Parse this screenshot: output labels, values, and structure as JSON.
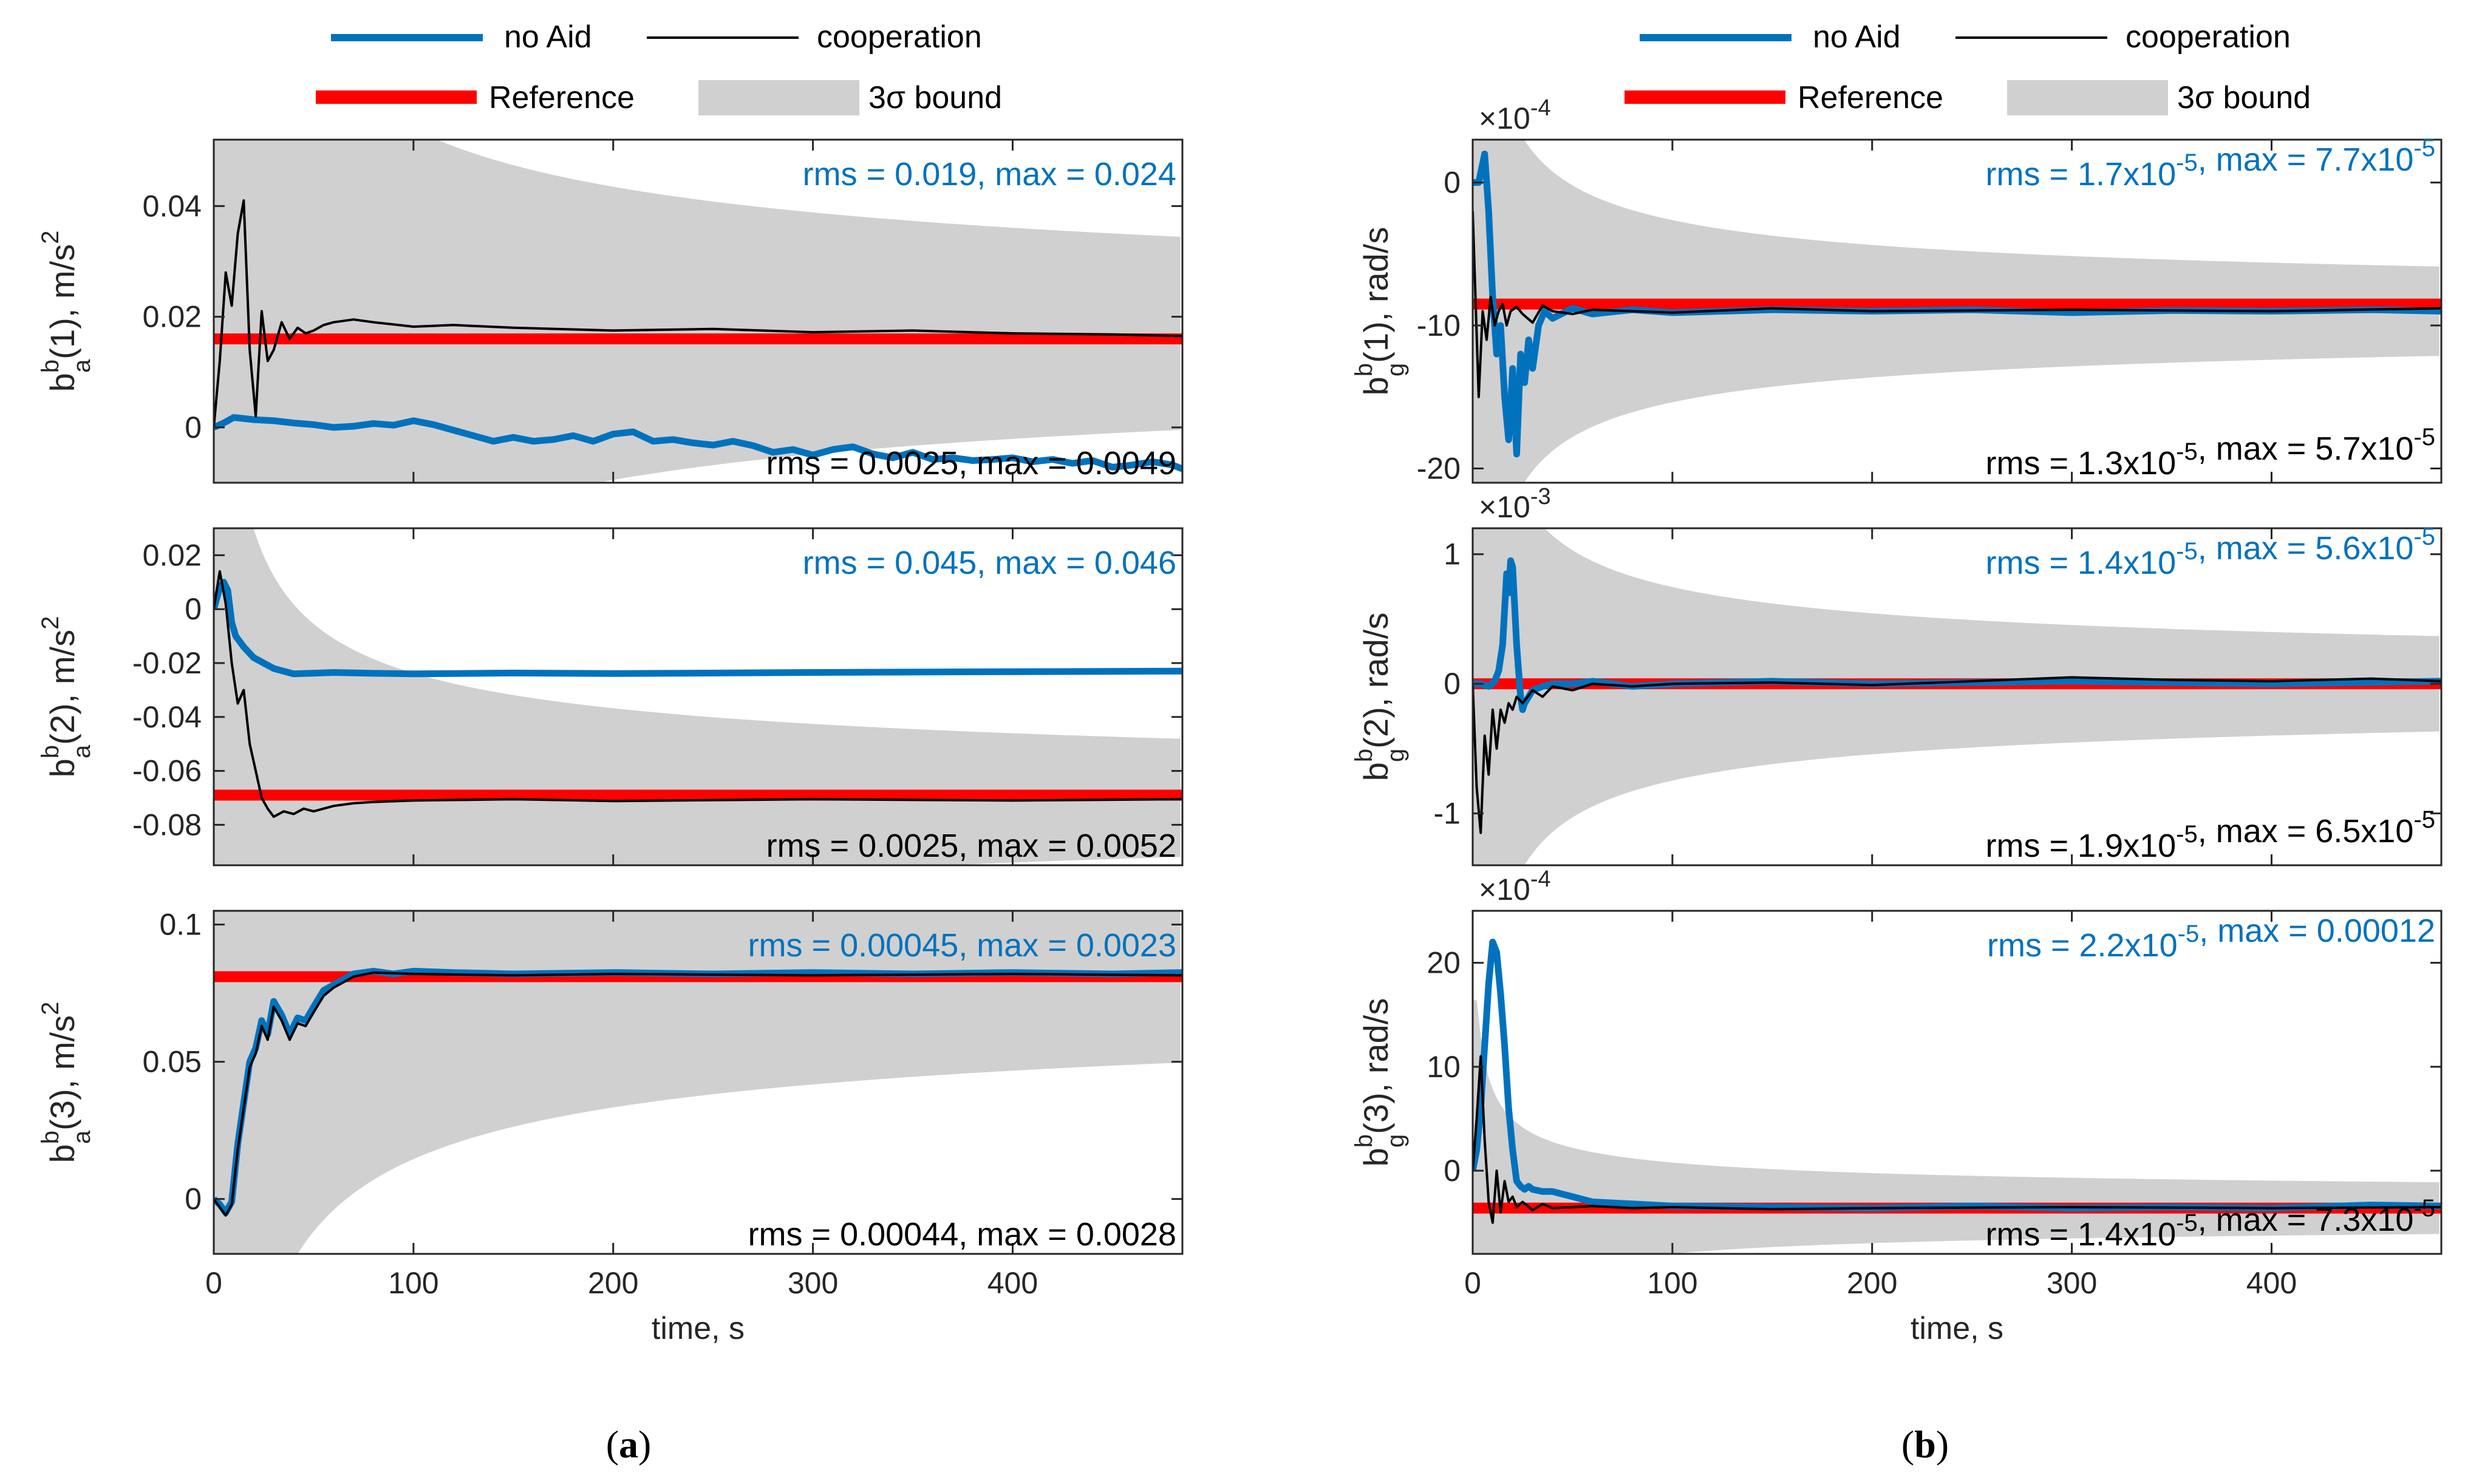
{
  "colors": {
    "no_aid": "#0072BD",
    "cooperation": "#000000",
    "reference": "#FF0000",
    "bound": "#D0D0D0",
    "axis": "#262626"
  },
  "chart_data": [
    {
      "panel": "a",
      "type": "line",
      "ylabel": "b_a^b(1), m/s^2",
      "ylim": [
        -0.01,
        0.052
      ],
      "yticks": [
        0,
        0.02,
        0.04
      ],
      "yticklabels": [
        "0",
        "0.02",
        "0.04"
      ],
      "xlim": [
        0,
        485
      ],
      "xticks": [
        0,
        100,
        200,
        300,
        400
      ],
      "xticklabels": [],
      "xlabel": "",
      "exponent": null,
      "annot_top": {
        "rms": "0.019",
        "max": "0.024"
      },
      "annot_bottom": {
        "rms": "0.0025",
        "max": "0.0049"
      },
      "reference": 0.016,
      "bound": {
        "center": 0.017,
        "k": 0.36,
        "floor": 0.0011,
        "cap": 0.05
      },
      "series": [
        {
          "name": "no Aid",
          "x": [
            0,
            5,
            10,
            20,
            30,
            40,
            50,
            60,
            70,
            80,
            90,
            100,
            110,
            120,
            130,
            140,
            150,
            160,
            170,
            180,
            190,
            200,
            210,
            220,
            230,
            240,
            250,
            260,
            270,
            280,
            290,
            300,
            310,
            320,
            330,
            340,
            350,
            360,
            370,
            380,
            390,
            400,
            410,
            420,
            430,
            440,
            450,
            460,
            470,
            480,
            485
          ],
          "y": [
            0,
            0.0008,
            0.0018,
            0.0014,
            0.0012,
            0.0008,
            0.0005,
            0,
            0.0002,
            0.0007,
            0.0004,
            0.0012,
            0.0005,
            -0.0005,
            -0.0015,
            -0.0025,
            -0.0018,
            -0.0025,
            -0.0022,
            -0.0015,
            -0.0025,
            -0.0012,
            -0.0008,
            -0.0025,
            -0.0022,
            -0.0028,
            -0.0032,
            -0.0025,
            -0.0033,
            -0.0045,
            -0.004,
            -0.005,
            -0.004,
            -0.0035,
            -0.0048,
            -0.0055,
            -0.0045,
            -0.0058,
            -0.0055,
            -0.006,
            -0.0058,
            -0.0055,
            -0.0062,
            -0.0058,
            -0.0065,
            -0.006,
            -0.0072,
            -0.0068,
            -0.0062,
            -0.0068,
            -0.0075
          ]
        },
        {
          "name": "cooperation",
          "x": [
            0,
            3,
            6,
            9,
            12,
            15,
            18,
            21,
            24,
            27,
            30,
            34,
            38,
            42,
            46,
            50,
            55,
            60,
            70,
            80,
            100,
            120,
            150,
            200,
            250,
            300,
            350,
            400,
            450,
            485
          ],
          "y": [
            0,
            0.012,
            0.028,
            0.022,
            0.035,
            0.041,
            0.014,
            0.002,
            0.021,
            0.012,
            0.014,
            0.019,
            0.016,
            0.018,
            0.017,
            0.0175,
            0.0185,
            0.019,
            0.0195,
            0.019,
            0.0182,
            0.0185,
            0.018,
            0.0175,
            0.0178,
            0.0172,
            0.0175,
            0.017,
            0.0168,
            0.0165
          ]
        }
      ]
    },
    {
      "panel": "a",
      "type": "line",
      "ylabel": "b_a^b(2), m/s^2",
      "ylim": [
        -0.095,
        0.03
      ],
      "yticks": [
        -0.08,
        -0.06,
        -0.04,
        -0.02,
        0,
        0.02
      ],
      "yticklabels": [
        "-0.08",
        "-0.06",
        "-0.04",
        "-0.02",
        "0",
        "0.02"
      ],
      "xlim": [
        0,
        485
      ],
      "xticks": [
        0,
        100,
        200,
        300,
        400
      ],
      "xticklabels": [],
      "xlabel": "",
      "exponent": null,
      "annot_top": {
        "rms": "0.045",
        "max": "0.046"
      },
      "annot_bottom": {
        "rms": "0.0025",
        "max": "0.0052"
      },
      "reference": -0.069,
      "bound": {
        "center": -0.07,
        "k": 0.45,
        "floor": 0.0015,
        "cap": 0.13
      },
      "series": [
        {
          "name": "no Aid",
          "x": [
            0,
            3,
            5,
            7,
            9,
            11,
            13,
            15,
            20,
            25,
            30,
            40,
            60,
            80,
            100,
            150,
            200,
            300,
            400,
            485
          ],
          "y": [
            0,
            0.008,
            0.01,
            0.007,
            -0.005,
            -0.01,
            -0.012,
            -0.014,
            -0.018,
            -0.02,
            -0.022,
            -0.024,
            -0.0235,
            -0.0238,
            -0.024,
            -0.0237,
            -0.0239,
            -0.0235,
            -0.0232,
            -0.023
          ]
        },
        {
          "name": "cooperation",
          "x": [
            0,
            3,
            6,
            9,
            12,
            15,
            18,
            21,
            24,
            27,
            30,
            35,
            40,
            45,
            50,
            60,
            70,
            80,
            100,
            150,
            200,
            300,
            400,
            485
          ],
          "y": [
            0,
            0.014,
            0.002,
            -0.02,
            -0.035,
            -0.03,
            -0.05,
            -0.06,
            -0.07,
            -0.074,
            -0.077,
            -0.075,
            -0.076,
            -0.074,
            -0.075,
            -0.073,
            -0.072,
            -0.0715,
            -0.071,
            -0.0705,
            -0.0712,
            -0.0705,
            -0.071,
            -0.0705
          ]
        }
      ]
    },
    {
      "panel": "a",
      "type": "line",
      "ylabel": "b_a^b(3), m/s^2",
      "ylim": [
        -0.02,
        0.105
      ],
      "yticks": [
        0,
        0.05,
        0.1
      ],
      "yticklabels": [
        "0",
        "0.05",
        "0.1"
      ],
      "xlim": [
        0,
        485
      ],
      "xticks": [
        0,
        100,
        200,
        300,
        400
      ],
      "xticklabels": [
        "0",
        "100",
        "200",
        "300",
        "400"
      ],
      "xlabel": "time, s",
      "exponent": null,
      "annot_top": {
        "rms": "0.00045",
        "max": "0.0023"
      },
      "annot_bottom": {
        "rms": "0.00044",
        "max": "0.0028"
      },
      "reference": 0.081,
      "bound": {
        "center": 0.081,
        "k": 0.65,
        "floor": 0.0018,
        "cap": 0.2
      },
      "series": [
        {
          "name": "no Aid",
          "x": [
            0,
            3,
            6,
            9,
            12,
            15,
            18,
            21,
            24,
            27,
            30,
            34,
            38,
            42,
            46,
            50,
            55,
            60,
            65,
            70,
            80,
            90,
            100,
            120,
            150,
            200,
            250,
            300,
            350,
            400,
            450,
            485
          ],
          "y": [
            0,
            -0.002,
            -0.005,
            -0.001,
            0.02,
            0.035,
            0.05,
            0.055,
            0.065,
            0.06,
            0.072,
            0.067,
            0.06,
            0.066,
            0.065,
            0.07,
            0.076,
            0.078,
            0.08,
            0.082,
            0.083,
            0.082,
            0.083,
            0.0825,
            0.082,
            0.0825,
            0.082,
            0.0825,
            0.082,
            0.0825,
            0.082,
            0.0825
          ]
        },
        {
          "name": "cooperation",
          "x": [
            0,
            3,
            6,
            9,
            12,
            15,
            18,
            21,
            24,
            27,
            30,
            34,
            38,
            42,
            46,
            50,
            55,
            60,
            70,
            80,
            100,
            150,
            200,
            300,
            400,
            485
          ],
          "y": [
            0,
            -0.003,
            -0.006,
            -0.002,
            0.018,
            0.033,
            0.048,
            0.053,
            0.063,
            0.058,
            0.07,
            0.065,
            0.058,
            0.064,
            0.063,
            0.068,
            0.074,
            0.077,
            0.081,
            0.0825,
            0.082,
            0.0815,
            0.082,
            0.0815,
            0.082,
            0.0815
          ]
        }
      ]
    },
    {
      "panel": "b",
      "type": "line",
      "ylabel": "b_g^b(1), rad/s",
      "ylim": [
        -21,
        3
      ],
      "yticks": [
        -20,
        -10,
        0
      ],
      "yticklabels": [
        "-20",
        "-10",
        "0"
      ],
      "xlim": [
        0,
        485
      ],
      "xticks": [
        0,
        100,
        200,
        300,
        400
      ],
      "xticklabels": [],
      "xlabel": "",
      "exponent": "×10",
      "exponent_power": "-4",
      "annot_top": {
        "rms": "1.7x10",
        "rms_exp": "-5",
        "max": "7.7x10",
        "max_exp": "-5"
      },
      "annot_bottom": {
        "rms": "1.3x10",
        "rms_exp": "-5",
        "max": "5.7x10",
        "max_exp": "-5"
      },
      "reference": -8.5,
      "bound": {
        "center": -9,
        "k": 60,
        "floor": 0.4,
        "cap": 15
      },
      "series": [
        {
          "name": "no Aid",
          "x": [
            0,
            3,
            6,
            8,
            10,
            12,
            14,
            16,
            18,
            20,
            22,
            24,
            26,
            28,
            30,
            33,
            36,
            40,
            50,
            60,
            80,
            100,
            150,
            200,
            250,
            300,
            350,
            400,
            450,
            485
          ],
          "y": [
            0,
            0,
            2,
            -2,
            -8,
            -12,
            -10,
            -15,
            -18,
            -13,
            -19,
            -12,
            -14,
            -11,
            -13,
            -10,
            -9,
            -9.5,
            -8.8,
            -9.2,
            -8.9,
            -9.1,
            -8.9,
            -9,
            -8.9,
            -9.1,
            -8.95,
            -9,
            -8.9,
            -9
          ]
        },
        {
          "name": "cooperation",
          "x": [
            0,
            3,
            5,
            7,
            9,
            11,
            13,
            15,
            17,
            19,
            22,
            25,
            30,
            35,
            40,
            50,
            60,
            80,
            100,
            150,
            200,
            300,
            400,
            485
          ],
          "y": [
            -2,
            -15,
            -9,
            -11,
            -8,
            -10,
            -9,
            -8.5,
            -10,
            -9,
            -8.7,
            -9.2,
            -9.8,
            -8.6,
            -9,
            -9.2,
            -8.9,
            -9,
            -9.1,
            -8.8,
            -9,
            -8.9,
            -9,
            -8.8
          ]
        }
      ]
    },
    {
      "panel": "b",
      "type": "line",
      "ylabel": "b_g^b(2), rad/s",
      "ylim": [
        -1.4,
        1.2
      ],
      "yticks": [
        -1,
        0,
        1
      ],
      "yticklabels": [
        "-1",
        "0",
        "1"
      ],
      "xlim": [
        0,
        485
      ],
      "xticks": [
        0,
        100,
        200,
        300,
        400
      ],
      "xticklabels": [],
      "xlabel": "",
      "exponent": "×10",
      "exponent_power": "-3",
      "annot_top": {
        "rms": "1.4x10",
        "rms_exp": "-5",
        "max": "5.6x10",
        "max_exp": "-5"
      },
      "annot_bottom": {
        "rms": "1.9x10",
        "rms_exp": "-5",
        "max": "6.5x10",
        "max_exp": "-5"
      },
      "reference": 0,
      "bound": {
        "center": 0,
        "k": 7,
        "floor": 0.05,
        "cap": 1.6
      },
      "series": [
        {
          "name": "no Aid",
          "x": [
            0,
            4,
            8,
            11,
            13,
            15,
            17,
            18,
            19,
            20,
            21,
            22,
            23,
            24,
            25,
            26,
            28,
            30,
            35,
            40,
            50,
            60,
            80,
            100,
            150,
            200,
            300,
            400,
            485
          ],
          "y": [
            0,
            0,
            -0.02,
            0.02,
            0.1,
            0.3,
            0.85,
            0.7,
            0.95,
            0.9,
            0.6,
            0.3,
            0.1,
            -0.1,
            -0.2,
            -0.15,
            -0.1,
            -0.05,
            -0.02,
            0,
            0,
            0.02,
            -0.02,
            0,
            0.02,
            0,
            0.02,
            0,
            0.02
          ]
        },
        {
          "name": "cooperation",
          "x": [
            0,
            2,
            4,
            6,
            8,
            10,
            12,
            14,
            16,
            18,
            20,
            22,
            25,
            30,
            35,
            40,
            50,
            60,
            80,
            100,
            150,
            200,
            250,
            300,
            350,
            400,
            450,
            485
          ],
          "y": [
            0,
            -0.8,
            -1.15,
            -0.4,
            -0.7,
            -0.2,
            -0.5,
            -0.2,
            -0.3,
            -0.15,
            -0.2,
            -0.1,
            -0.15,
            -0.05,
            -0.1,
            -0.02,
            -0.05,
            0,
            -0.02,
            0,
            0.01,
            -0.01,
            0.02,
            0.05,
            0.03,
            0.02,
            0.04,
            0.02
          ]
        }
      ]
    },
    {
      "panel": "b",
      "type": "line",
      "ylabel": "b_g^b(3), rad/s",
      "ylim": [
        -8,
        25
      ],
      "yticks": [
        0,
        10,
        20
      ],
      "yticklabels": [
        "0",
        "10",
        "20"
      ],
      "xlim": [
        0,
        485
      ],
      "xticks": [
        0,
        100,
        200,
        300,
        400
      ],
      "xticklabels": [
        "0",
        "100",
        "200",
        "300",
        "400"
      ],
      "xlabel": "time, s",
      "exponent": "×10",
      "exponent_power": "-4",
      "annot_top": {
        "rms": "2.2x10",
        "rms_exp": "-5",
        "max": "0.00012",
        "max_exp": ""
      },
      "annot_bottom": {
        "rms": "1.4x10",
        "rms_exp": "-5",
        "max": "7.3x10",
        "max_exp": "-5"
      },
      "reference": -3.6,
      "bound": {
        "center": -3.6,
        "k": 35,
        "floor": 0.9,
        "cap": 20
      },
      "series": [
        {
          "name": "no Aid",
          "x": [
            0,
            2,
            4,
            6,
            8,
            10,
            12,
            14,
            16,
            18,
            20,
            22,
            24,
            26,
            28,
            30,
            35,
            40,
            50,
            60,
            80,
            100,
            150,
            200,
            250,
            300,
            350,
            400,
            450,
            485
          ],
          "y": [
            0,
            2,
            6,
            12,
            18,
            22,
            21,
            17,
            12,
            6,
            2,
            -1,
            -1.5,
            -1.8,
            -1.5,
            -1.8,
            -2,
            -2,
            -2.5,
            -3,
            -3.2,
            -3.4,
            -3.5,
            -3.6,
            -3.4,
            -3.6,
            -3.5,
            -3.6,
            -3.3,
            -3.4
          ]
        },
        {
          "name": "cooperation",
          "x": [
            0,
            2,
            4,
            6,
            8,
            10,
            12,
            14,
            16,
            18,
            20,
            22,
            25,
            30,
            35,
            40,
            50,
            60,
            80,
            100,
            150,
            200,
            300,
            400,
            485
          ],
          "y": [
            0,
            5,
            11,
            3,
            -3,
            -5,
            0,
            -4,
            -1,
            -3,
            -2.5,
            -3.5,
            -3,
            -3.8,
            -3.2,
            -3.6,
            -3.5,
            -3.4,
            -3.6,
            -3.5,
            -3.7,
            -3.6,
            -3.5,
            -3.6,
            -3.5
          ]
        }
      ]
    }
  ],
  "legend": {
    "a": {
      "no_aid": "no Aid",
      "cooperation": "cooperation",
      "reference": "Reference",
      "bound": "3σ bound"
    },
    "b": {
      "no_aid": "no Aid",
      "cooperation": "cooperation",
      "reference": "Reference",
      "bound": "3σ bound"
    }
  },
  "captions": {
    "a": "a",
    "b": "b"
  }
}
